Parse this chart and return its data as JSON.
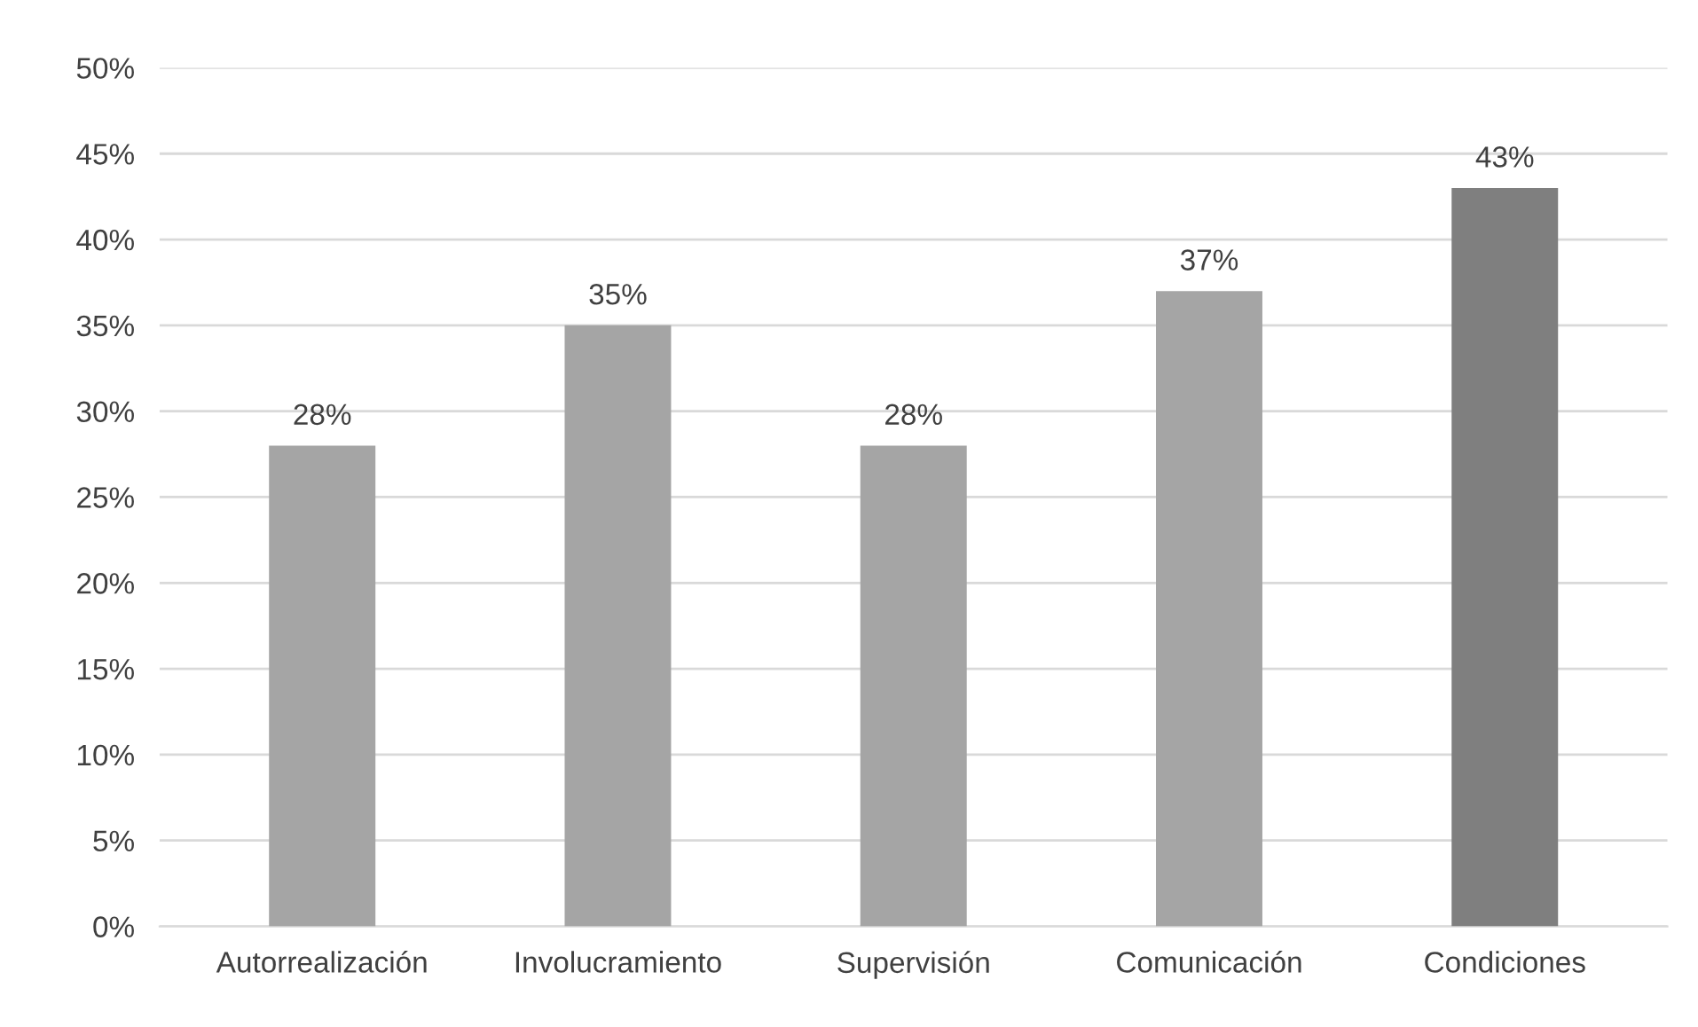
{
  "chart_data": {
    "type": "bar",
    "categories": [
      "Autorrealización",
      "Involucramiento",
      "Supervisión",
      "Comunicación",
      "Condiciones"
    ],
    "values": [
      28,
      35,
      28,
      37,
      43
    ],
    "colors": [
      "#a5a5a5",
      "#a5a5a5",
      "#a5a5a5",
      "#a5a5a5",
      "#7f7f7f"
    ],
    "value_labels": [
      "28%",
      "35%",
      "28%",
      "37%",
      "43%"
    ],
    "ylim": [
      0,
      50
    ],
    "yticks": [
      {
        "value": 0,
        "label": "0%"
      },
      {
        "value": 5,
        "label": "5%"
      },
      {
        "value": 10,
        "label": "10%"
      },
      {
        "value": 15,
        "label": "15%"
      },
      {
        "value": 20,
        "label": "20%"
      },
      {
        "value": 25,
        "label": "25%"
      },
      {
        "value": 30,
        "label": "30%"
      },
      {
        "value": 35,
        "label": "35%"
      },
      {
        "value": 40,
        "label": "40%"
      },
      {
        "value": 45,
        "label": "45%"
      },
      {
        "value": 50,
        "label": "50%"
      }
    ],
    "grid": "y",
    "legend": false
  }
}
